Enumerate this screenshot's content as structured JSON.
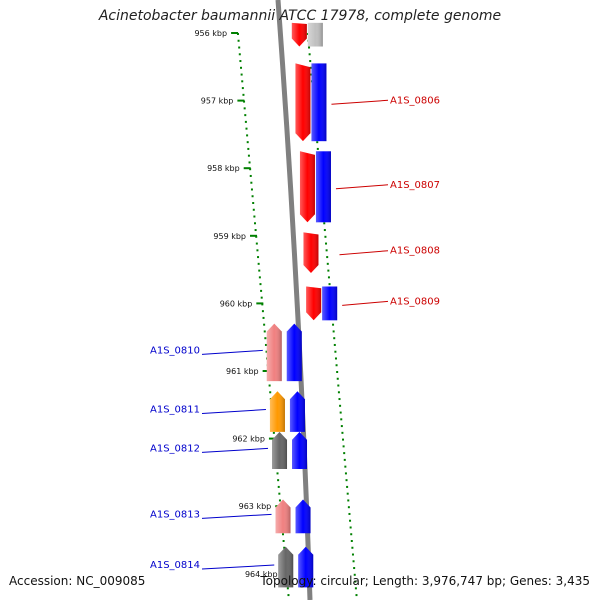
{
  "title": "Acinetobacter baumannii ATCC 17978, complete genome",
  "footer": {
    "accession": "Accession: NC_009085",
    "topology": "Topology: circular; Length: 3,976,747 bp; Genes: 3,435"
  },
  "colors": {
    "forward_strand": "#ff0000",
    "reverse_strand": "#0000ff",
    "tick": "#008000",
    "backbone": "#808080",
    "label_forward": "#cc0000",
    "label_reverse": "#0000cc"
  },
  "ticks": [
    {
      "label": "956 kbp",
      "kbp": 956
    },
    {
      "label": "957 kbp",
      "kbp": 957
    },
    {
      "label": "958 kbp",
      "kbp": 958
    },
    {
      "label": "959 kbp",
      "kbp": 959
    },
    {
      "label": "960 kbp",
      "kbp": 960
    },
    {
      "label": "961 kbp",
      "kbp": 961
    },
    {
      "label": "962 kbp",
      "kbp": 962
    },
    {
      "label": "963 kbp",
      "kbp": 963
    },
    {
      "label": "964 kbp",
      "kbp": 964
    }
  ],
  "genes": [
    {
      "name": "",
      "strand": "forward",
      "start_kbp": 955.85,
      "end_kbp": 956.2,
      "outer_color": "#ff0000",
      "inner_color": "#c0c0c0"
    },
    {
      "name": "A1S_0806",
      "strand": "forward",
      "start_kbp": 956.45,
      "end_kbp": 957.6,
      "outer_color": "#ff0000",
      "inner_color": "#0000ff"
    },
    {
      "name": "A1S_0807",
      "strand": "forward",
      "start_kbp": 957.75,
      "end_kbp": 958.8,
      "outer_color": "#ff0000",
      "inner_color": "#0000ff"
    },
    {
      "name": "A1S_0808",
      "strand": "forward",
      "start_kbp": 958.95,
      "end_kbp": 959.55,
      "outer_color": "#ff0000",
      "inner_color": ""
    },
    {
      "name": "A1S_0809",
      "strand": "forward",
      "start_kbp": 959.75,
      "end_kbp": 960.25,
      "outer_color": "#ff0000",
      "inner_color": "#0000ff"
    },
    {
      "name": "A1S_0810",
      "strand": "reverse",
      "start_kbp": 960.3,
      "end_kbp": 961.15,
      "outer_color": "#f08080",
      "inner_color": "#0000ff"
    },
    {
      "name": "A1S_0811",
      "strand": "reverse",
      "start_kbp": 961.3,
      "end_kbp": 961.9,
      "outer_color": "#ff9900",
      "inner_color": "#0000ff"
    },
    {
      "name": "A1S_0812",
      "strand": "reverse",
      "start_kbp": 961.9,
      "end_kbp": 962.45,
      "outer_color": "#666666",
      "inner_color": "#0000ff"
    },
    {
      "name": "A1S_0813",
      "strand": "reverse",
      "start_kbp": 962.9,
      "end_kbp": 963.4,
      "outer_color": "#f08080",
      "inner_color": "#0000ff"
    },
    {
      "name": "A1S_0814",
      "strand": "reverse",
      "start_kbp": 963.6,
      "end_kbp": 964.2,
      "outer_color": "#666666",
      "inner_color": "#0000ff"
    }
  ]
}
